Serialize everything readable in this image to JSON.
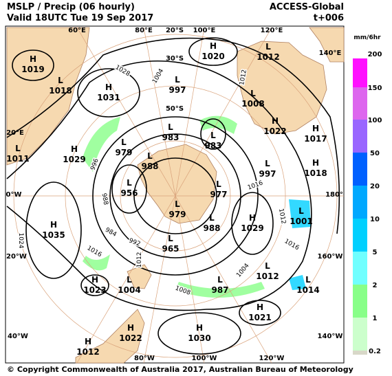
{
  "header": {
    "title": "MSLP / Precip  (06 hourly)",
    "valid": "Valid 18UTC Tue 19 Sep 2017",
    "model": "ACCESS-Global",
    "lead": "t+006"
  },
  "colorbar": {
    "unit": "mm/6hr",
    "labels": [
      "200",
      "150",
      "100",
      "50",
      "20",
      "10",
      "5",
      "2",
      "1",
      "0.2"
    ],
    "colors": [
      "#ff10ff",
      "#dd66ee",
      "#9966ff",
      "#0060ff",
      "#00a8ff",
      "#00d0ff",
      "#70ffff",
      "#88ff88",
      "#ccffcc",
      "#d8d8c8"
    ]
  },
  "graticule": [
    "60°E",
    "80°E",
    "20°S",
    "100°E",
    "120°E",
    "140°E",
    "30°S",
    "50°S",
    "20°E",
    "0°W",
    "180°",
    "20°W",
    "160°W",
    "40°W",
    "140°W",
    "80°W",
    "100°W",
    "120°W"
  ],
  "centers": [
    [
      "H",
      1019
    ],
    [
      "L",
      1018
    ],
    [
      "H",
      1031
    ],
    [
      "H",
      1020
    ],
    [
      "L",
      1012
    ],
    [
      "L",
      997
    ],
    [
      "L",
      1008
    ],
    [
      "H",
      1022
    ],
    [
      "H",
      1017
    ],
    [
      "L",
      983
    ],
    [
      "L",
      983
    ],
    [
      "L",
      979
    ],
    [
      "H",
      1029
    ],
    [
      "L",
      1011
    ],
    [
      "L",
      988
    ],
    [
      "L",
      997
    ],
    [
      "H",
      1018
    ],
    [
      "L",
      956
    ],
    [
      "L",
      977
    ],
    [
      "L",
      979
    ],
    [
      "L",
      1001
    ],
    [
      "H",
      1035
    ],
    [
      "H",
      1029
    ],
    [
      "L",
      988
    ],
    [
      "L",
      965
    ],
    [
      "L",
      1012
    ],
    [
      "H",
      1023
    ],
    [
      "L",
      1004
    ],
    [
      "L",
      987
    ],
    [
      "L",
      1014
    ],
    [
      "H",
      1021
    ],
    [
      "H",
      1022
    ],
    [
      "H",
      1030
    ],
    [
      "H",
      1012
    ]
  ],
  "isobar_labels": [
    "1028",
    "1004",
    "1012",
    "996",
    "988",
    "984",
    "992",
    "1016",
    "1012",
    "1008",
    "1004",
    "1012",
    "1016",
    "1016",
    "1024"
  ],
  "footer": "© Copyright Commonwealth of Australia 2017, Australian Bureau of Meteorology"
}
